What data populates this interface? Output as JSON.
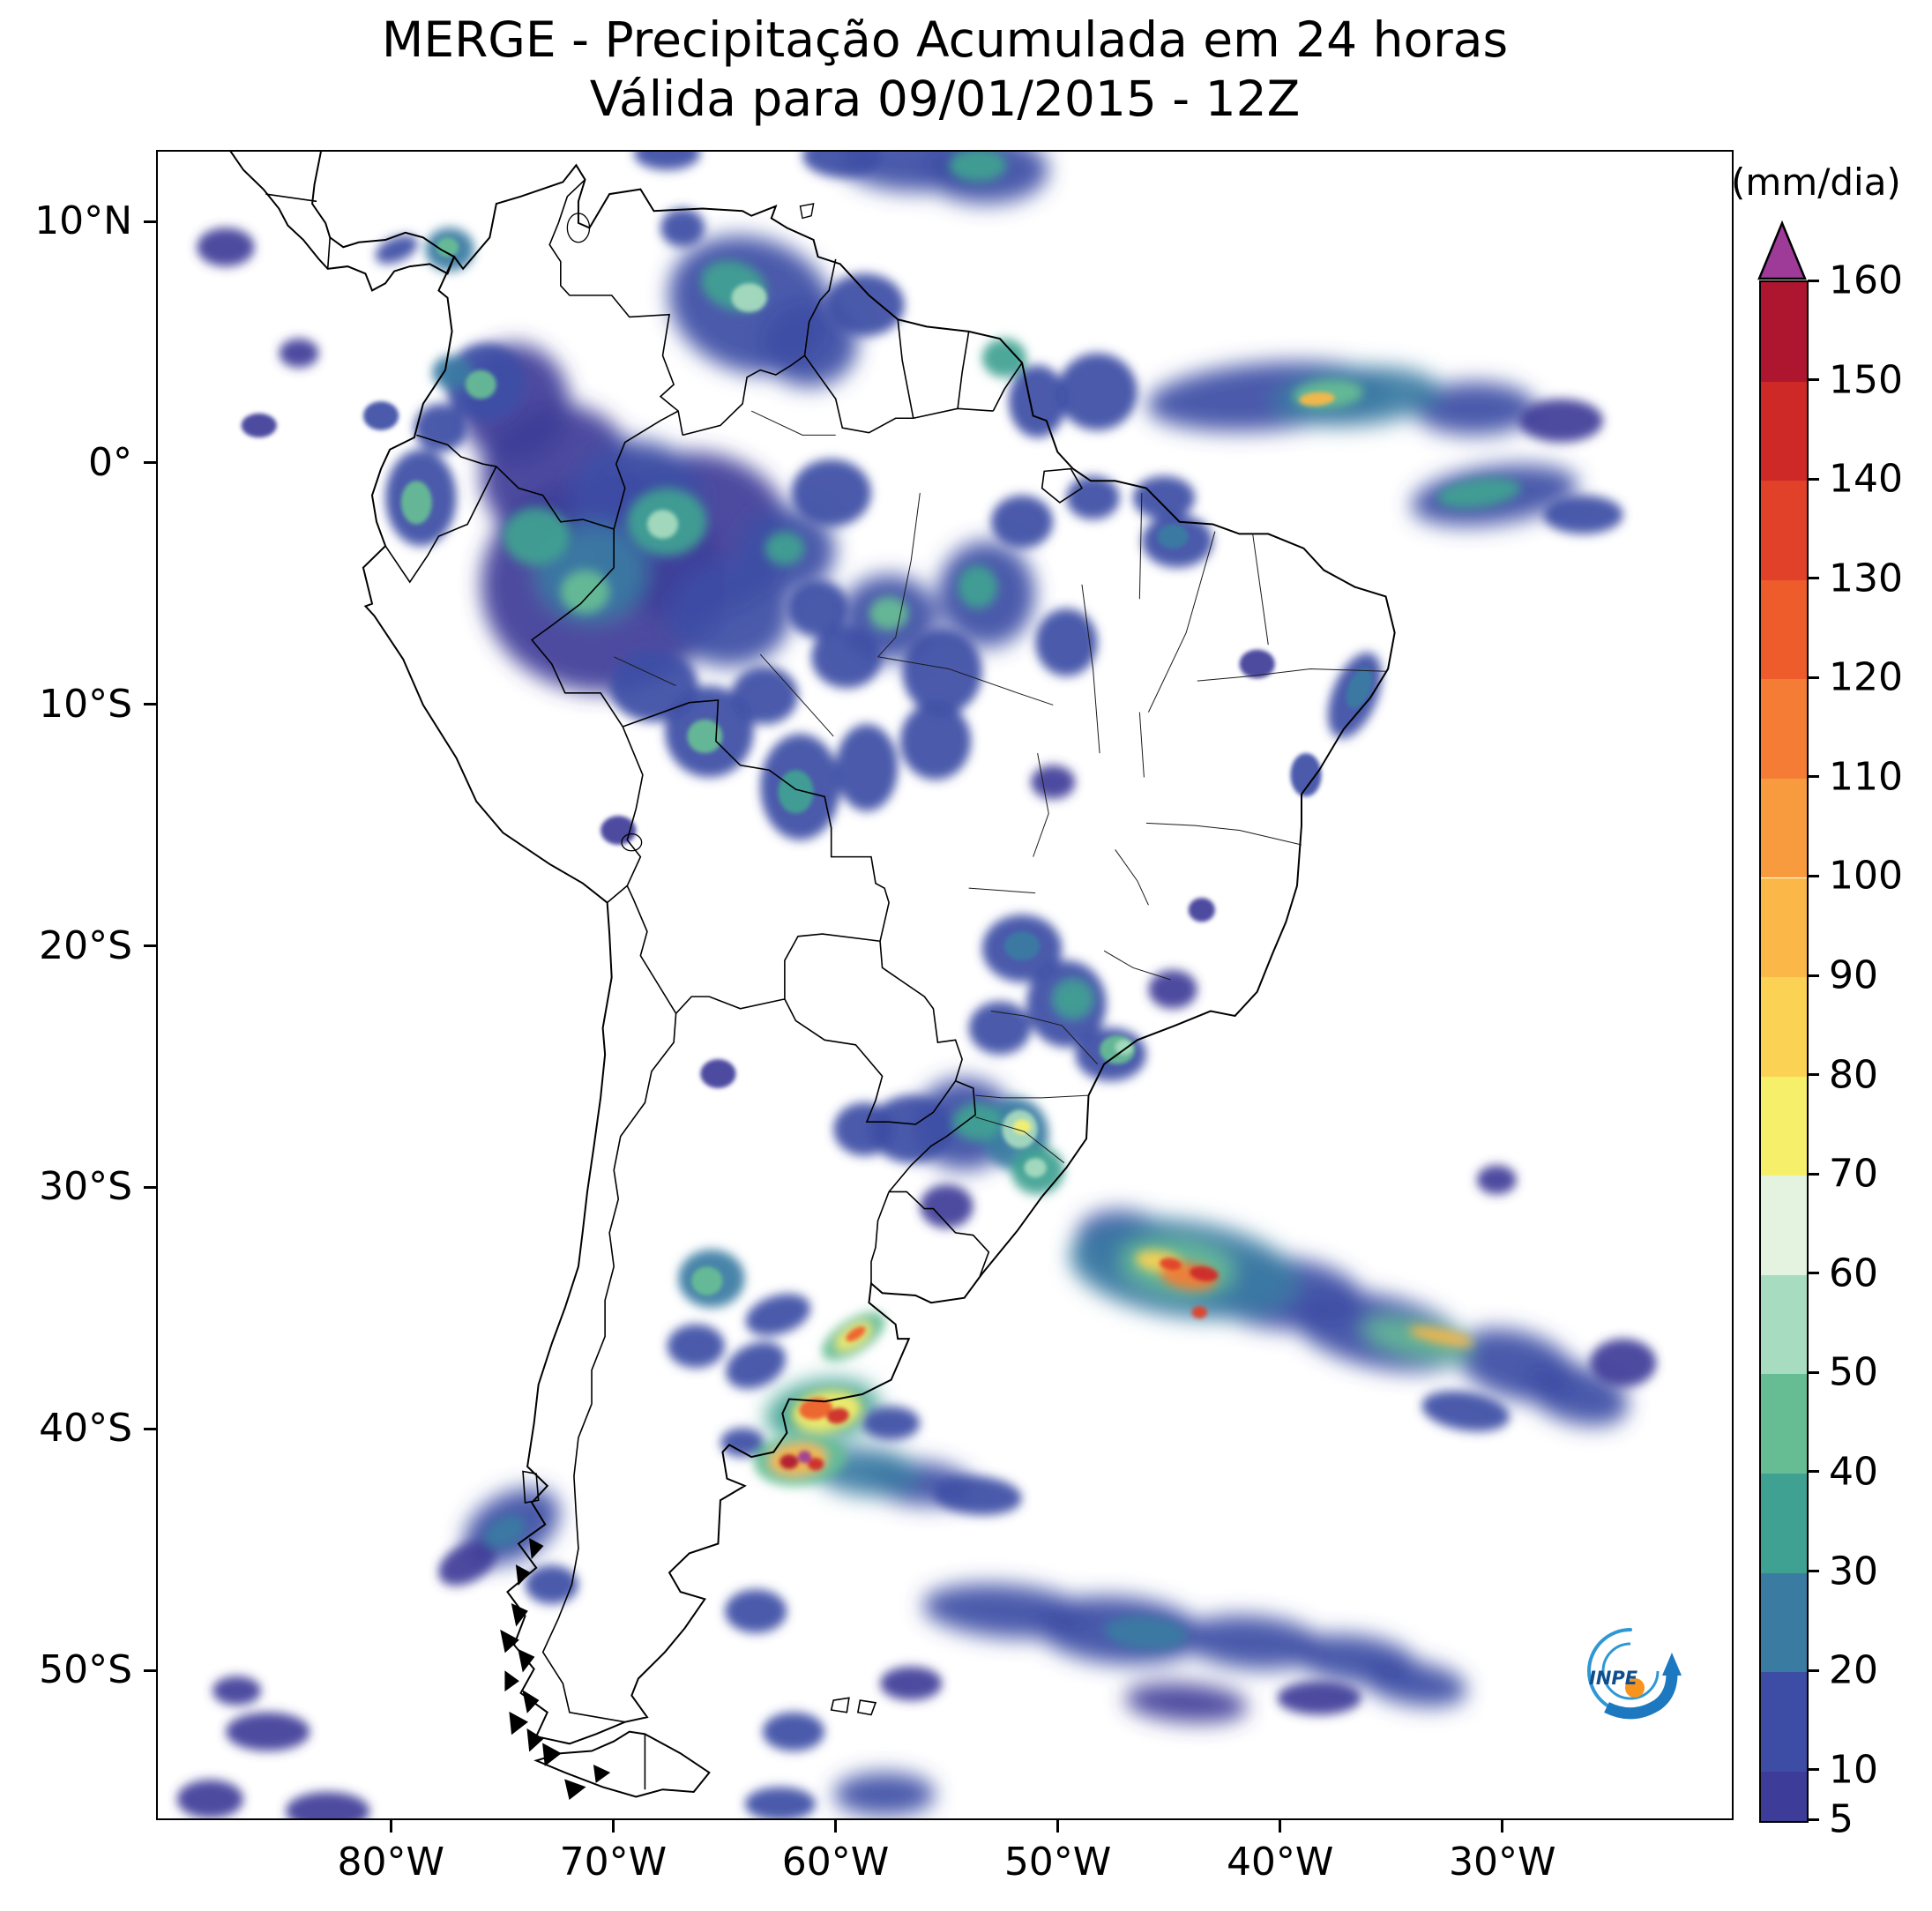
{
  "logo": {
    "text": "INPE",
    "blue": "#1c79c0",
    "light_blue": "#2f97d4",
    "orange": "#f7941e",
    "navy": "#0f4d8c"
  },
  "chart_data": {
    "type": "heatmap",
    "title": "MERGE - Precipitação Acumulada em 24 horas",
    "subtitle": "Válida para 09/01/2015 - 12Z",
    "colorbar": {
      "label": "(mm/dia)",
      "units": "mm/dia",
      "levels": [
        5,
        10,
        20,
        30,
        40,
        50,
        60,
        70,
        80,
        90,
        100,
        110,
        120,
        130,
        140,
        150,
        160
      ],
      "colors": [
        "#3e3c99",
        "#3d4da5",
        "#3a7ba2",
        "#3fa192",
        "#66bd94",
        "#a8dcc0",
        "#e3f3e0",
        "#f6ef69",
        "#fbd254",
        "#fbb748",
        "#f89b3e",
        "#f47c34",
        "#ee5c2b",
        "#e14029",
        "#ce2827",
        "#ae152e"
      ],
      "extend_color": "#9e3a97"
    },
    "x_axis": {
      "label_ticks": [
        "80°W",
        "70°W",
        "60°W",
        "50°W",
        "40°W",
        "30°W"
      ],
      "tick_lons": [
        -80,
        -70,
        -60,
        -50,
        -40,
        -30
      ],
      "lon_range": [
        -90.56,
        -19.6
      ]
    },
    "y_axis": {
      "label_ticks": [
        "10°N",
        "0°",
        "10°S",
        "20°S",
        "30°S",
        "40°S",
        "50°S"
      ],
      "tick_lats": [
        10,
        0,
        -10,
        -20,
        -30,
        -40,
        -50
      ],
      "lat_range": [
        -56.2,
        12.96
      ]
    },
    "grid": false,
    "features_format": [
      "lon",
      "lat",
      "rx_deg",
      "ry_deg",
      "rot_deg",
      "value_mm_dia"
    ],
    "features": [
      [
        -70.5,
        -5.0,
        5.5,
        4.5,
        0,
        8
      ],
      [
        -66.5,
        -3.0,
        4.5,
        3.5,
        0,
        8
      ],
      [
        -72.5,
        -0.5,
        3.5,
        3.0,
        0,
        8
      ],
      [
        -74.5,
        2.5,
        2.5,
        2.5,
        0,
        8
      ],
      [
        -69.0,
        -1.5,
        3.0,
        2.5,
        0,
        12
      ],
      [
        -71.0,
        -4.5,
        2.5,
        2.0,
        0,
        25
      ],
      [
        -71.3,
        -5.3,
        1.1,
        0.9,
        0,
        45
      ],
      [
        -73.5,
        -3.0,
        1.5,
        1.2,
        0,
        30
      ],
      [
        -67.6,
        -2.4,
        1.8,
        1.4,
        0,
        30
      ],
      [
        -67.8,
        -2.5,
        0.7,
        0.6,
        0,
        50
      ],
      [
        -64.8,
        -6.2,
        2.8,
        2.2,
        0,
        10
      ],
      [
        -62.2,
        -3.6,
        2.2,
        1.8,
        0,
        15
      ],
      [
        -62.3,
        -3.5,
        0.9,
        0.7,
        0,
        38
      ],
      [
        -60.2,
        -1.2,
        1.8,
        1.4,
        0,
        10
      ],
      [
        -75.8,
        3.4,
        1.8,
        1.6,
        0,
        18
      ],
      [
        -76.0,
        3.3,
        0.7,
        0.6,
        0,
        42
      ],
      [
        -78.7,
        -1.4,
        1.6,
        2.0,
        0,
        18
      ],
      [
        -78.9,
        -1.6,
        0.7,
        0.9,
        0,
        40
      ],
      [
        -77.8,
        1.5,
        1.2,
        1.0,
        0,
        15
      ],
      [
        -77.3,
        3.8,
        0.9,
        0.7,
        0,
        25
      ],
      [
        -68.2,
        -9.2,
        2.0,
        1.5,
        0,
        10
      ],
      [
        -65.7,
        -11.1,
        2.0,
        1.9,
        0,
        14
      ],
      [
        -65.9,
        -11.3,
        0.8,
        0.7,
        0,
        40
      ],
      [
        -63.2,
        -9.6,
        1.5,
        1.2,
        0,
        10
      ],
      [
        -61.6,
        -13.4,
        1.8,
        2.2,
        0,
        14
      ],
      [
        -61.8,
        -13.6,
        0.8,
        0.9,
        0,
        38
      ],
      [
        -58.6,
        -12.6,
        1.4,
        1.8,
        0,
        10
      ],
      [
        -57.6,
        -6.4,
        2.2,
        1.8,
        0,
        12
      ],
      [
        -57.6,
        -6.2,
        0.9,
        0.7,
        0,
        40
      ],
      [
        -55.2,
        -8.6,
        1.8,
        1.8,
        0,
        10
      ],
      [
        -53.2,
        -5.4,
        2.2,
        2.2,
        0,
        12
      ],
      [
        -53.6,
        -5.1,
        0.9,
        0.9,
        0,
        30
      ],
      [
        -51.6,
        -2.4,
        1.4,
        1.1,
        0,
        10
      ],
      [
        -49.6,
        -7.4,
        1.4,
        1.4,
        0,
        10
      ],
      [
        -55.5,
        -11.5,
        1.6,
        1.6,
        0,
        10
      ],
      [
        -59.5,
        -8.0,
        1.6,
        1.3,
        0,
        10
      ],
      [
        -60.8,
        -6.0,
        1.4,
        1.2,
        0,
        12
      ],
      [
        -63.8,
        6.6,
        3.8,
        2.8,
        15,
        14
      ],
      [
        -64.6,
        7.4,
        1.5,
        1.0,
        15,
        38
      ],
      [
        -63.9,
        6.9,
        0.8,
        0.6,
        0,
        55
      ],
      [
        -61.2,
        5.0,
        2.2,
        1.8,
        0,
        12
      ],
      [
        -58.7,
        6.6,
        1.8,
        1.3,
        0,
        10
      ],
      [
        -66.9,
        9.8,
        1.0,
        0.8,
        0,
        12
      ],
      [
        -56.3,
        12.6,
        3.5,
        1.3,
        0,
        12
      ],
      [
        -53.2,
        12.2,
        2.8,
        1.4,
        0,
        16
      ],
      [
        -53.6,
        12.4,
        1.3,
        0.7,
        0,
        35
      ],
      [
        -59.7,
        12.8,
        1.8,
        0.9,
        0,
        10
      ],
      [
        -67.6,
        12.9,
        1.5,
        0.7,
        0,
        10
      ],
      [
        -77.4,
        8.9,
        1.1,
        0.9,
        0,
        22
      ],
      [
        -77.5,
        9.0,
        0.5,
        0.4,
        0,
        45
      ],
      [
        -79.8,
        8.9,
        1.0,
        0.5,
        -20,
        12
      ],
      [
        -52.4,
        4.4,
        1.0,
        0.8,
        0,
        32
      ],
      [
        -48.2,
        3.0,
        1.8,
        1.6,
        0,
        14
      ],
      [
        -50.9,
        2.6,
        1.3,
        1.5,
        0,
        18
      ],
      [
        -40.5,
        2.8,
        5.5,
        1.4,
        -4,
        13
      ],
      [
        -36.5,
        2.8,
        3.8,
        1.2,
        -4,
        22
      ],
      [
        -37.8,
        2.9,
        1.6,
        0.6,
        -4,
        45
      ],
      [
        -38.3,
        2.7,
        0.8,
        0.28,
        -4,
        90
      ],
      [
        -31.2,
        2.3,
        2.8,
        1.1,
        0,
        10
      ],
      [
        -27.3,
        1.8,
        1.9,
        0.9,
        0,
        9
      ],
      [
        -30.3,
        -1.3,
        3.8,
        1.2,
        -7,
        16
      ],
      [
        -31.0,
        -1.2,
        1.9,
        0.6,
        -7,
        34
      ],
      [
        -26.3,
        -2.1,
        1.8,
        0.8,
        0,
        10
      ],
      [
        -45.2,
        -1.4,
        1.4,
        0.9,
        0,
        10
      ],
      [
        -44.6,
        -3.2,
        1.6,
        1.1,
        0,
        12
      ],
      [
        -44.8,
        -3.0,
        0.7,
        0.5,
        0,
        28
      ],
      [
        -48.4,
        -1.4,
        1.2,
        0.9,
        0,
        12
      ],
      [
        -36.6,
        -9.6,
        1.0,
        1.9,
        25,
        14
      ],
      [
        -36.4,
        -9.3,
        0.5,
        0.9,
        25,
        28
      ],
      [
        -38.8,
        -12.9,
        0.7,
        0.9,
        0,
        10
      ],
      [
        -41.0,
        -8.3,
        0.8,
        0.6,
        0,
        8
      ],
      [
        -51.6,
        -20.1,
        1.8,
        1.4,
        0,
        10
      ],
      [
        -51.6,
        -20.0,
        0.8,
        0.6,
        0,
        28
      ],
      [
        -49.6,
        -22.4,
        1.8,
        1.8,
        0,
        13
      ],
      [
        -49.3,
        -22.2,
        0.9,
        0.8,
        0,
        32
      ],
      [
        -52.6,
        -23.4,
        1.4,
        1.1,
        0,
        10
      ],
      [
        -47.6,
        -24.5,
        1.6,
        1.1,
        0,
        16
      ],
      [
        -47.3,
        -24.3,
        0.8,
        0.6,
        0,
        40
      ],
      [
        -47.0,
        -24.2,
        0.4,
        0.3,
        0,
        58
      ],
      [
        -44.8,
        -21.8,
        1.1,
        0.8,
        0,
        8
      ],
      [
        -50.2,
        -13.2,
        1.0,
        0.7,
        0,
        9
      ],
      [
        -43.5,
        -18.5,
        0.6,
        0.5,
        0,
        8
      ],
      [
        -56.6,
        -27.6,
        1.9,
        1.4,
        0,
        12
      ],
      [
        -54.2,
        -27.4,
        2.3,
        1.9,
        0,
        15
      ],
      [
        -53.6,
        -27.3,
        1.1,
        0.8,
        0,
        38
      ],
      [
        -51.9,
        -27.8,
        1.5,
        1.5,
        0,
        28
      ],
      [
        -51.7,
        -27.6,
        0.8,
        0.8,
        0,
        52
      ],
      [
        -51.6,
        -27.5,
        0.4,
        0.3,
        0,
        72
      ],
      [
        -50.9,
        -29.3,
        1.2,
        1.0,
        0,
        32
      ],
      [
        -51.0,
        -29.2,
        0.5,
        0.4,
        0,
        55
      ],
      [
        -58.7,
        -27.6,
        1.4,
        1.1,
        0,
        10
      ],
      [
        -55.0,
        -30.8,
        1.2,
        0.9,
        0,
        9
      ],
      [
        -44.3,
        -33.4,
        5.2,
        2.0,
        7,
        22
      ],
      [
        -46.8,
        -32.4,
        2.4,
        1.4,
        10,
        16
      ],
      [
        -44.6,
        -33.3,
        2.6,
        1.1,
        7,
        40
      ],
      [
        -45.4,
        -33.1,
        1.1,
        0.45,
        8,
        80
      ],
      [
        -44.1,
        -33.7,
        1.3,
        0.55,
        8,
        110
      ],
      [
        -43.4,
        -33.6,
        0.65,
        0.3,
        8,
        140
      ],
      [
        -44.9,
        -33.2,
        0.5,
        0.25,
        8,
        130
      ],
      [
        -43.6,
        -35.2,
        0.35,
        0.25,
        0,
        130
      ],
      [
        -40.0,
        -34.4,
        3.8,
        1.5,
        5,
        16
      ],
      [
        -35.5,
        -36.0,
        4.0,
        1.5,
        11,
        18
      ],
      [
        -33.8,
        -36.3,
        2.5,
        0.7,
        11,
        42
      ],
      [
        -32.7,
        -36.2,
        1.5,
        0.3,
        11,
        95
      ],
      [
        -29.3,
        -37.4,
        2.8,
        1.4,
        14,
        15
      ],
      [
        -26.6,
        -38.6,
        2.4,
        1.2,
        14,
        12
      ],
      [
        -31.6,
        -39.3,
        2.0,
        0.8,
        8,
        10
      ],
      [
        -24.5,
        -37.3,
        1.5,
        1.0,
        0,
        9
      ],
      [
        -65.6,
        -33.8,
        1.5,
        1.2,
        0,
        22
      ],
      [
        -65.8,
        -33.9,
        0.7,
        0.6,
        0,
        42
      ],
      [
        -66.3,
        -36.6,
        1.3,
        0.9,
        0,
        12
      ],
      [
        -63.6,
        -37.4,
        1.4,
        0.9,
        -20,
        12
      ],
      [
        -62.6,
        -35.3,
        1.5,
        0.8,
        -15,
        10
      ],
      [
        -59.2,
        -36.2,
        1.6,
        0.7,
        -30,
        40
      ],
      [
        -59.2,
        -36.2,
        0.9,
        0.4,
        -30,
        75
      ],
      [
        -59.1,
        -36.1,
        0.5,
        0.22,
        -30,
        120
      ],
      [
        -60.6,
        -39.3,
        2.6,
        1.3,
        -8,
        35
      ],
      [
        -60.4,
        -39.3,
        1.6,
        0.85,
        -8,
        70
      ],
      [
        -60.9,
        -39.2,
        0.75,
        0.45,
        -8,
        125
      ],
      [
        -59.9,
        -39.5,
        0.5,
        0.32,
        -8,
        145
      ],
      [
        -61.6,
        -41.3,
        2.1,
        1.1,
        -5,
        45
      ],
      [
        -61.7,
        -41.3,
        1.3,
        0.65,
        -5,
        95
      ],
      [
        -62.1,
        -41.4,
        0.42,
        0.3,
        0,
        152
      ],
      [
        -61.4,
        -41.2,
        0.3,
        0.26,
        0,
        163
      ],
      [
        -60.9,
        -41.5,
        0.36,
        0.26,
        0,
        148
      ],
      [
        -58.6,
        -41.8,
        2.4,
        1.0,
        4,
        26
      ],
      [
        -56.2,
        -42.3,
        2.4,
        0.9,
        4,
        15
      ],
      [
        -53.6,
        -42.8,
        2.0,
        0.8,
        4,
        10
      ],
      [
        -64.2,
        -40.6,
        1.0,
        0.6,
        0,
        16
      ],
      [
        -57.5,
        -39.8,
        1.3,
        0.7,
        0,
        10
      ],
      [
        -65.3,
        -25.3,
        0.8,
        0.6,
        0,
        8
      ],
      [
        -74.6,
        -44.1,
        2.3,
        1.4,
        -25,
        13
      ],
      [
        -74.9,
        -44.3,
        1.0,
        0.6,
        -25,
        28
      ],
      [
        -76.6,
        -45.6,
        1.4,
        0.8,
        -25,
        9
      ],
      [
        -72.8,
        -46.5,
        1.2,
        0.8,
        0,
        10
      ],
      [
        -52.3,
        -47.6,
        3.8,
        1.1,
        4,
        10
      ],
      [
        -47.2,
        -48.4,
        3.8,
        1.4,
        4,
        13
      ],
      [
        -46.0,
        -48.5,
        1.9,
        0.7,
        4,
        24
      ],
      [
        -41.2,
        -48.9,
        3.2,
        1.1,
        4,
        13
      ],
      [
        -36.6,
        -49.6,
        2.8,
        1.0,
        6,
        11
      ],
      [
        -33.9,
        -50.6,
        2.4,
        0.9,
        8,
        10
      ],
      [
        -44.2,
        -51.4,
        2.8,
        0.8,
        4,
        9
      ],
      [
        -38.2,
        -51.2,
        1.9,
        0.7,
        0,
        9
      ],
      [
        -56.6,
        -50.6,
        1.4,
        0.7,
        0,
        9
      ],
      [
        -63.6,
        -47.6,
        1.4,
        0.9,
        0,
        10
      ],
      [
        -61.9,
        -52.6,
        1.4,
        0.8,
        0,
        10
      ],
      [
        -57.8,
        -55.2,
        2.3,
        0.9,
        0,
        12
      ],
      [
        -62.5,
        -55.6,
        1.6,
        0.7,
        0,
        10
      ],
      [
        -85.6,
        -52.6,
        1.9,
        0.8,
        0,
        9
      ],
      [
        -88.2,
        -55.4,
        1.5,
        0.8,
        0,
        9
      ],
      [
        -82.9,
        -55.9,
        1.9,
        0.8,
        0,
        9
      ],
      [
        -87.0,
        -50.9,
        1.1,
        0.6,
        0,
        8
      ],
      [
        -84.2,
        4.6,
        0.9,
        0.6,
        0,
        8
      ],
      [
        -86.0,
        1.6,
        0.8,
        0.5,
        0,
        8
      ],
      [
        -87.5,
        9.0,
        1.3,
        0.8,
        0,
        9
      ],
      [
        -80.5,
        2.0,
        0.8,
        0.6,
        0,
        10
      ],
      [
        -30.2,
        -29.7,
        0.9,
        0.6,
        0,
        8
      ],
      [
        -69.8,
        -15.2,
        0.8,
        0.6,
        0,
        9
      ]
    ]
  }
}
